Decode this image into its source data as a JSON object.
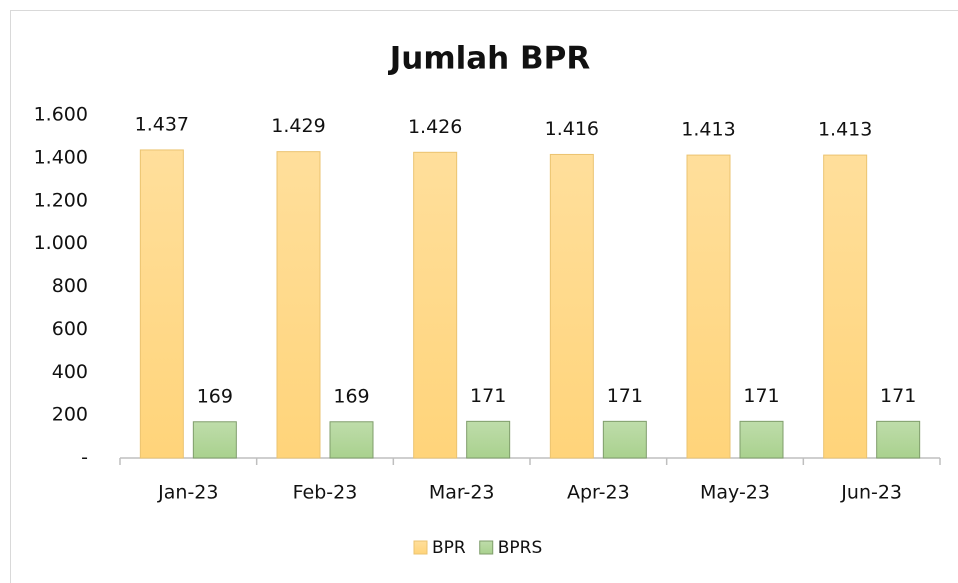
{
  "chart_data": {
    "type": "bar",
    "title": "Jumlah BPR",
    "categories": [
      "Jan-23",
      "Feb-23",
      "Mar-23",
      "Apr-23",
      "May-23",
      "Jun-23"
    ],
    "series": [
      {
        "name": "BPR",
        "color": "#ffd47a",
        "values": [
          1437,
          1429,
          1426,
          1416,
          1413,
          1413
        ],
        "value_labels": [
          "1.437",
          "1.429",
          "1.426",
          "1.416",
          "1.413",
          "1.413"
        ]
      },
      {
        "name": "BPRS",
        "color": "#a9d18e",
        "values": [
          169,
          169,
          171,
          171,
          171,
          171
        ]
      }
    ],
    "ylim": [
      0,
      1600
    ],
    "yticks": [
      {
        "value": 0,
        "label": "-"
      },
      200,
      400,
      600,
      800,
      {
        "value": 1000,
        "label": "1.000"
      },
      {
        "value": 1200,
        "label": "1.200"
      },
      {
        "value": 1400,
        "label": "1.400"
      },
      {
        "value": 1600,
        "label": "1.600"
      }
    ],
    "grid": false,
    "legend": "bottom"
  }
}
